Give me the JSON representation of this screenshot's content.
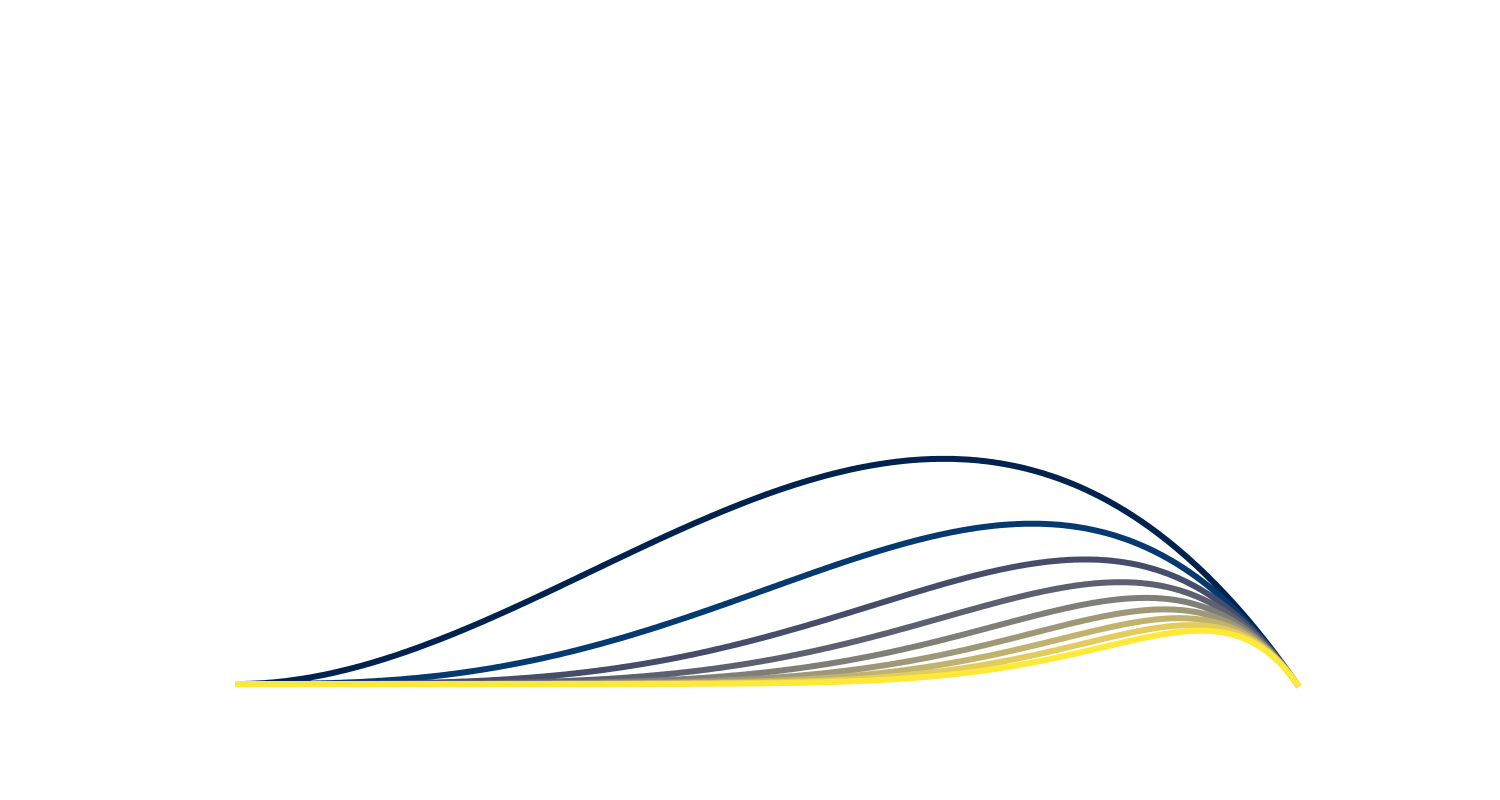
{
  "chart_data": {
    "type": "line",
    "title": "",
    "xlabel": "",
    "ylabel": "",
    "xlim": [
      0,
      1
    ],
    "ylim": [
      0,
      1
    ],
    "grid": false,
    "axes_visible": false,
    "legend": "none",
    "curve": "x^n * (1 - x)",
    "series": [
      {
        "n": 2,
        "color": "#00224e"
      },
      {
        "n": 3,
        "color": "#053a70"
      },
      {
        "n": 4,
        "color": "#454d6b"
      },
      {
        "n": 5,
        "color": "#5d606e"
      },
      {
        "n": 6,
        "color": "#7f7e77"
      },
      {
        "n": 7,
        "color": "#9e9878"
      },
      {
        "n": 8,
        "color": "#c1b26e"
      },
      {
        "n": 9,
        "color": "#e2cc5e"
      },
      {
        "n": 10,
        "color": "#fee838"
      }
    ]
  }
}
